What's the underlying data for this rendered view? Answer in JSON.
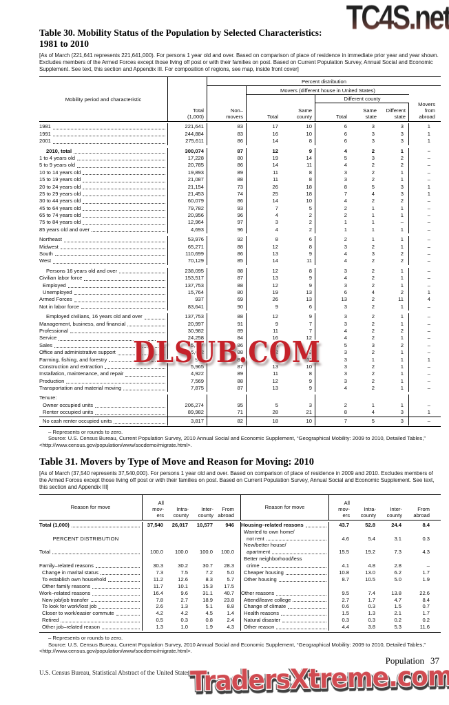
{
  "watermarks": {
    "top": "TC4S.net",
    "middle": "DLSUB.COM",
    "bottom": "TradersXtreme.com"
  },
  "page": {
    "section_label": "Population",
    "page_number": "37",
    "imprint": "U.S. Census Bureau, Statistical Abstract of the United States: 2012"
  },
  "table30": {
    "title_line1": "Table 30. Mobility Status of the Population by Selected Characteristics:",
    "title_line2": "1981 to 2010",
    "headnote": "[As of March (221,641 represents 221,641,000). For persons 1 year old and over. Based on comparison of place of residence in immediate prior year and year shown. Excludes members of the Armed Forces except those living off post or with their families on post. Based on Current Population Survey, Annual Social and Economic Supplement. See text, this section and Appendix III. For composition of regions, see map, inside front cover]",
    "header": {
      "stub": "Mobility period and characteristic",
      "total": "Total\n(1,000)",
      "percent_distribution": "Percent distribution",
      "nonmovers": "Non–\nmovers",
      "movers_us": "Movers (different house in United States)",
      "movers_total": "Total",
      "same_county": "Same\ncounty",
      "different_county": "Different county",
      "dc_total": "Total",
      "same_state": "Same\nstate",
      "different_state": "Different\nstate",
      "abroad": "Movers\nfrom\nabroad"
    },
    "rows": [
      {
        "label": "1981",
        "values": [
          "221,641",
          "83",
          "17",
          "10",
          "6",
          "3",
          "3",
          "1"
        ]
      },
      {
        "label": "1991",
        "values": [
          "244,884",
          "83",
          "16",
          "10",
          "6",
          "3",
          "3",
          "1"
        ]
      },
      {
        "label": "2001",
        "values": [
          "275,611",
          "86",
          "14",
          "8",
          "6",
          "3",
          "3",
          "1"
        ]
      },
      {
        "label": "2010, total",
        "bold": true,
        "indent": 2,
        "gap": true,
        "values": [
          "300,074",
          "87",
          "12",
          "9",
          "4",
          "2",
          "1",
          "–"
        ]
      },
      {
        "label": "1 to 4 years old",
        "values": [
          "17,228",
          "80",
          "19",
          "14",
          "5",
          "3",
          "2",
          "–"
        ]
      },
      {
        "label": "5 to 9 years old",
        "values": [
          "20,785",
          "86",
          "14",
          "11",
          "4",
          "2",
          "2",
          "–"
        ]
      },
      {
        "label": "10 to 14 years old",
        "values": [
          "19,893",
          "89",
          "11",
          "8",
          "3",
          "2",
          "1",
          "–"
        ]
      },
      {
        "label": "15 to 19 years old",
        "values": [
          "21,087",
          "88",
          "11",
          "8",
          "3",
          "2",
          "1",
          "–"
        ]
      },
      {
        "label": "20 to 24 years old",
        "values": [
          "21,154",
          "73",
          "26",
          "18",
          "8",
          "5",
          "3",
          "1"
        ]
      },
      {
        "label": "25 to 29 years old",
        "values": [
          "21,453",
          "74",
          "25",
          "18",
          "7",
          "4",
          "3",
          "1"
        ]
      },
      {
        "label": "30 to 44 years old",
        "values": [
          "60,079",
          "86",
          "14",
          "10",
          "4",
          "2",
          "2",
          "–"
        ]
      },
      {
        "label": "45 to 64 years old",
        "values": [
          "79,782",
          "93",
          "7",
          "5",
          "2",
          "1",
          "1",
          "–"
        ]
      },
      {
        "label": "65 to 74 years old",
        "values": [
          "20,956",
          "96",
          "4",
          "2",
          "2",
          "1",
          "1",
          "–"
        ]
      },
      {
        "label": "75 to 84 years old",
        "values": [
          "12,964",
          "97",
          "3",
          "2",
          "1",
          "1",
          "–",
          "–"
        ]
      },
      {
        "label": "85 years old and over",
        "values": [
          "4,693",
          "96",
          "4",
          "2",
          "1",
          "1",
          "1",
          "–"
        ]
      },
      {
        "label": "Northeast",
        "gap": true,
        "values": [
          "53,976",
          "92",
          "8",
          "6",
          "2",
          "1",
          "1",
          "–"
        ]
      },
      {
        "label": "Midwest",
        "values": [
          "65,271",
          "88",
          "12",
          "8",
          "3",
          "2",
          "1",
          "–"
        ]
      },
      {
        "label": "South",
        "values": [
          "110,699",
          "86",
          "13",
          "9",
          "4",
          "3",
          "2",
          "–"
        ]
      },
      {
        "label": "West",
        "values": [
          "70,129",
          "85",
          "14",
          "11",
          "4",
          "2",
          "2",
          "–"
        ]
      },
      {
        "label": "Persons 16 years old and over",
        "indent": 2,
        "gap": true,
        "values": [
          "238,095",
          "88",
          "12",
          "8",
          "3",
          "2",
          "1",
          "–"
        ]
      },
      {
        "label": "Civilian labor force",
        "values": [
          "153,517",
          "87",
          "13",
          "9",
          "4",
          "2",
          "1",
          "–"
        ]
      },
      {
        "label": "Employed",
        "indent": 1,
        "values": [
          "137,753",
          "88",
          "12",
          "9",
          "3",
          "2",
          "1",
          "–"
        ]
      },
      {
        "label": "Unemployed",
        "indent": 1,
        "values": [
          "15,764",
          "80",
          "19",
          "13",
          "6",
          "4",
          "2",
          "1"
        ]
      },
      {
        "label": "Armed Forces",
        "values": [
          "937",
          "69",
          "26",
          "13",
          "13",
          "2",
          "11",
          "4"
        ]
      },
      {
        "label": "Not in labor force",
        "values": [
          "83,641",
          "90",
          "9",
          "6",
          "3",
          "2",
          "1",
          "–"
        ]
      },
      {
        "label": "Employed civilians, 16 years old and over",
        "indent": 2,
        "gap": true,
        "values": [
          "137,753",
          "88",
          "12",
          "9",
          "3",
          "2",
          "1",
          "–"
        ]
      },
      {
        "label": "Management, business, and financial",
        "values": [
          "20,997",
          "91",
          "9",
          "7",
          "3",
          "2",
          "1",
          "–"
        ]
      },
      {
        "label": "Professional",
        "values": [
          "30,982",
          "89",
          "11",
          "7",
          "4",
          "2",
          "2",
          "–"
        ]
      },
      {
        "label": "Service",
        "values": [
          "24,258",
          "84",
          "16",
          "12",
          "4",
          "2",
          "1",
          "–"
        ]
      },
      {
        "label": "Sales",
        "values": [
          "15,187",
          "86",
          "14",
          "9",
          "5",
          "3",
          "2",
          "–"
        ]
      },
      {
        "label": "Office and administrative support",
        "values": [
          "16,672",
          "88",
          "12",
          "9",
          "3",
          "2",
          "1",
          "–"
        ]
      },
      {
        "label": "Farming, fishing, and forestry",
        "values": [
          "939",
          "84",
          "15",
          "11",
          "3",
          "1",
          "1",
          "1"
        ]
      },
      {
        "label": "Construction and extraction",
        "values": [
          "5,965",
          "87",
          "13",
          "10",
          "3",
          "2",
          "1",
          "–"
        ]
      },
      {
        "label": "Installation, maintenance, and repair",
        "values": [
          "4,922",
          "89",
          "11",
          "8",
          "3",
          "2",
          "1",
          "–"
        ]
      },
      {
        "label": "Production",
        "values": [
          "7,569",
          "88",
          "12",
          "9",
          "3",
          "2",
          "1",
          "–"
        ]
      },
      {
        "label": "Transportation and material moving",
        "values": [
          "7,875",
          "87",
          "13",
          "9",
          "4",
          "2",
          "1",
          "–"
        ]
      },
      {
        "label": "Tenure:",
        "gap": true,
        "noleader": true,
        "values": []
      },
      {
        "label": "Owner occupied units",
        "indent": 1,
        "values": [
          "206,274",
          "95",
          "5",
          "3",
          "2",
          "1",
          "1",
          "–"
        ]
      },
      {
        "label": "Renter occupied units",
        "indent": 1,
        "values": [
          "89,982",
          "71",
          "28",
          "21",
          "8",
          "4",
          "3",
          "1"
        ]
      },
      {
        "label": "No cash renter occupied units",
        "indent": 1,
        "rule": true,
        "values": [
          "3,817",
          "82",
          "18",
          "10",
          "7",
          "5",
          "3",
          "–"
        ]
      }
    ],
    "footnote": "– Represents or rounds to zero.",
    "source": "Source: U.S. Census Bureau, Current Population Survey, 2010 Annual Social and Economic Supplement, “Geographical Mobility: 2009 to 2010, Detailed Tables,” <http://www.census.gov/population/www/socdemo/migrate.html>."
  },
  "table31": {
    "title": "Table 31. Movers by Type of Move and Reason for Moving: 2010",
    "headnote": "[As of March (37,540 represents 37,540,000). For persons 1 year old and over. Based on comparison of place of residence in 2009 and 2010. Excludes members of the Armed Forces except those living off post or with their families on post. Based on Current Population Survey, Annual Social and Economic Supplement. See text, this section and Appendix III]",
    "header": {
      "stub_left": "Reason for move",
      "stub_right": "Reason for move",
      "col1": "All\nmov-\ners",
      "col2": "Intra-\ncounty",
      "col3": "Inter-\ncounty",
      "col4": "From\nabroad"
    },
    "lines": [
      {
        "l": {
          "label": "Total (1,000)",
          "bold": true,
          "v": [
            "37,540",
            "26,017",
            "10,577",
            "946"
          ]
        },
        "r": {
          "label": "Housing–related reasons",
          "v": [
            "43.7",
            "52.8",
            "24.4",
            "8.4"
          ]
        }
      },
      {
        "l": null,
        "r": {
          "label": "Wanted to own home/",
          "indent": 1,
          "wrap": true
        }
      },
      {
        "l": {
          "label": "PERCENT DISTRIBUTION",
          "center": true
        },
        "r": {
          "label": "not rent",
          "indent": 2,
          "v": [
            "4.6",
            "5.4",
            "3.1",
            "0.3"
          ]
        }
      },
      {
        "l": null,
        "r": {
          "label": "New/better house/",
          "indent": 1,
          "wrap": true
        }
      },
      {
        "l": {
          "label": "Total",
          "v": [
            "100.0",
            "100.0",
            "100.0",
            "100.0"
          ]
        },
        "r": {
          "label": "apartment",
          "indent": 2,
          "v": [
            "15.5",
            "19.2",
            "7.3",
            "4.3"
          ]
        }
      },
      {
        "l": null,
        "r": {
          "label": "Better neighborhood/less",
          "indent": 1,
          "wrap": true
        }
      },
      {
        "l": {
          "label": "Family–related reasons",
          "v": [
            "30.3",
            "30.2",
            "30.7",
            "28.3"
          ]
        },
        "r": {
          "label": "crime",
          "indent": 2,
          "v": [
            "4.1",
            "4.8",
            "2.8",
            "–"
          ]
        }
      },
      {
        "l": {
          "label": "Change in marital status",
          "indent": 1,
          "v": [
            "7.3",
            "7.5",
            "7.2",
            "5.0"
          ]
        },
        "r": {
          "label": "Cheaper housing",
          "indent": 1,
          "v": [
            "10.8",
            "13.0",
            "6.2",
            "1.7"
          ]
        }
      },
      {
        "l": {
          "label": "To establish own household",
          "indent": 1,
          "v": [
            "11.2",
            "12.6",
            "8.3",
            "5.7"
          ]
        },
        "r": {
          "label": "Other housing",
          "indent": 1,
          "v": [
            "8.7",
            "10.5",
            "5.0",
            "1.9"
          ]
        }
      },
      {
        "l": {
          "label": "Other family reasons",
          "indent": 1,
          "v": [
            "11.7",
            "10.1",
            "15.3",
            "17.5"
          ]
        },
        "r": null
      },
      {
        "l": {
          "label": "Work–related reasons",
          "v": [
            "16.4",
            "9.6",
            "31.1",
            "40.7"
          ]
        },
        "r": {
          "label": "Other reasons",
          "v": [
            "9.5",
            "7.4",
            "13.8",
            "22.6"
          ]
        }
      },
      {
        "l": {
          "label": "New job/job transfer",
          "indent": 1,
          "v": [
            "7.8",
            "2.7",
            "18.9",
            "23.8"
          ]
        },
        "r": {
          "label": "Attend/leave college",
          "indent": 1,
          "v": [
            "2.7",
            "1.7",
            "4.7",
            "8.4"
          ]
        }
      },
      {
        "l": {
          "label": "To look for work/lost job",
          "indent": 1,
          "v": [
            "2.6",
            "1.3",
            "5.1",
            "8.8"
          ]
        },
        "r": {
          "label": "Change of climate",
          "indent": 1,
          "v": [
            "0.6",
            "0.3",
            "1.5",
            "0.7"
          ]
        }
      },
      {
        "l": {
          "label": "Closer to work/easier commute",
          "indent": 1,
          "v": [
            "4.2",
            "4.2",
            "4.5",
            "1.4"
          ]
        },
        "r": {
          "label": "Health reasons",
          "indent": 1,
          "v": [
            "1.5",
            "1.3",
            "2.1",
            "1.7"
          ]
        }
      },
      {
        "l": {
          "label": "Retired",
          "indent": 1,
          "v": [
            "0.5",
            "0.3",
            "0.8",
            "2.4"
          ]
        },
        "r": {
          "label": "Natural disaster",
          "indent": 1,
          "v": [
            "0.3",
            "0.3",
            "0.2",
            "0.2"
          ]
        }
      },
      {
        "l": {
          "label": "Other job–related reason",
          "indent": 1,
          "v": [
            "1.3",
            "1.0",
            "1.9",
            "4.3"
          ]
        },
        "r": {
          "label": "Other reason",
          "indent": 1,
          "v": [
            "4.4",
            "3.8",
            "5.3",
            "11.6"
          ]
        }
      }
    ],
    "footnote": "– Represents or rounds to zero.",
    "source": "Source: U.S. Census Bureau, Current Population Survey, 2010 Annual Social and Economic Supplement, “Geographical Mobility: 2009 to 2010, Detailed Tables,” <http://www.census.gov/population/www/socdemo/migrate.html>."
  }
}
